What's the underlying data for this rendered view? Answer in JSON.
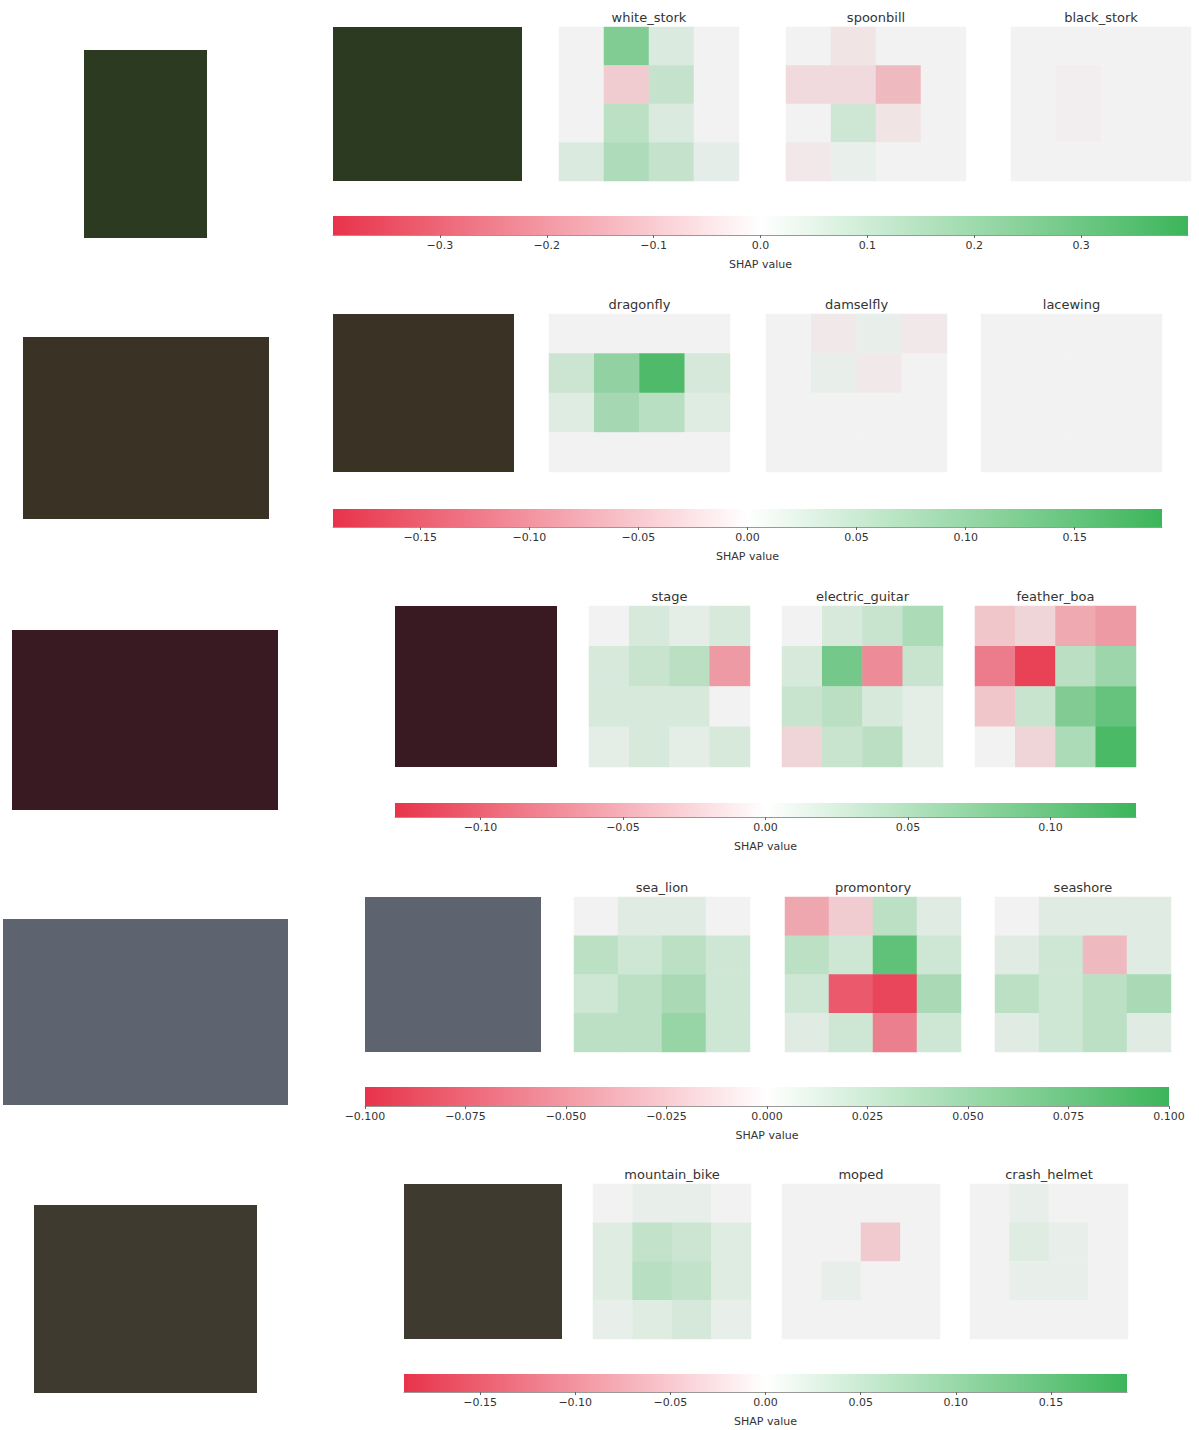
{
  "chart_data": [
    {
      "type": "heatmap",
      "xlabel": "SHAP value",
      "xlim": [
        -0.4,
        0.4
      ],
      "xticks": [
        {
          "value": -0.3,
          "label": "−0.3"
        },
        {
          "value": -0.2,
          "label": "−0.2"
        },
        {
          "value": -0.1,
          "label": "−0.1"
        },
        {
          "value": 0,
          "label": "0.0"
        },
        0.1,
        0.2,
        0.3
      ],
      "series": [
        {
          "name": "white_stork",
          "cells": [
            [
              0,
              0.25,
              0.05,
              0
            ],
            [
              0,
              -0.08,
              0.1,
              0
            ],
            [
              0,
              0.12,
              0.05,
              0
            ],
            [
              0.05,
              0.15,
              0.1,
              0.03
            ]
          ]
        },
        {
          "name": "spoonbill",
          "cells": [
            [
              0,
              -0.03,
              0,
              0
            ],
            [
              -0.05,
              -0.05,
              -0.12,
              0
            ],
            [
              0,
              0.08,
              -0.03,
              0
            ],
            [
              -0.02,
              0.02,
              0,
              0
            ]
          ]
        },
        {
          "name": "black_stork",
          "cells": [
            [
              0,
              0,
              0,
              0
            ],
            [
              0,
              -0.01,
              0,
              0
            ],
            [
              0,
              -0.01,
              0,
              0
            ],
            [
              0,
              0,
              0,
              0
            ]
          ]
        }
      ]
    },
    {
      "type": "heatmap",
      "xlabel": "SHAP value",
      "xlim": [
        -0.19,
        0.19
      ],
      "xticks": [
        {
          "value": -0.15,
          "label": "−0.15"
        },
        {
          "value": -0.1,
          "label": "−0.10"
        },
        {
          "value": -0.05,
          "label": "−0.05"
        },
        {
          "value": 0,
          "label": "0.00"
        },
        0.05,
        {
          "value": 0.1,
          "label": "0.10"
        },
        0.15
      ],
      "series": [
        {
          "name": "dragonfly",
          "cells": [
            [
              0,
              0,
              0,
              0
            ],
            [
              0.04,
              0.1,
              0.17,
              0.03
            ],
            [
              0.02,
              0.08,
              0.06,
              0.02
            ],
            [
              0,
              0,
              0,
              0
            ]
          ]
        },
        {
          "name": "damselfly",
          "cells": [
            [
              0,
              -0.01,
              0.01,
              -0.01
            ],
            [
              0,
              0.01,
              -0.01,
              0
            ],
            [
              0,
              0,
              0,
              0
            ],
            [
              0,
              0,
              0,
              0
            ]
          ]
        },
        {
          "name": "lacewing",
          "cells": [
            [
              0,
              0,
              0,
              0
            ],
            [
              0,
              0,
              0,
              0
            ],
            [
              0,
              0,
              0,
              0
            ],
            [
              0,
              0,
              0,
              0
            ]
          ]
        }
      ]
    },
    {
      "type": "heatmap",
      "xlabel": "SHAP value",
      "xlim": [
        -0.13,
        0.13
      ],
      "xticks": [
        {
          "value": -0.1,
          "label": "−0.10"
        },
        {
          "value": -0.05,
          "label": "−0.05"
        },
        {
          "value": 0,
          "label": "0.00"
        },
        0.05,
        {
          "value": 0.1,
          "label": "0.10"
        }
      ],
      "series": [
        {
          "name": "stage",
          "cells": [
            [
              0,
              0.02,
              0.01,
              0.02
            ],
            [
              0.02,
              0.03,
              0.04,
              -0.06
            ],
            [
              0.02,
              0.02,
              0.02,
              0
            ],
            [
              0.01,
              0.02,
              0.01,
              0.02
            ]
          ]
        },
        {
          "name": "electric_guitar",
          "cells": [
            [
              0,
              0.02,
              0.03,
              0.05
            ],
            [
              0.02,
              0.09,
              -0.07,
              0.03
            ],
            [
              0.03,
              0.04,
              0.02,
              0.01
            ],
            [
              -0.02,
              0.03,
              0.04,
              0.01
            ]
          ]
        },
        {
          "name": "feather_boa",
          "cells": [
            [
              -0.03,
              -0.02,
              -0.05,
              -0.06
            ],
            [
              -0.08,
              -0.12,
              0.04,
              0.06
            ],
            [
              -0.03,
              0.03,
              0.08,
              0.1
            ],
            [
              0,
              -0.02,
              0.05,
              0.12
            ]
          ]
        }
      ]
    },
    {
      "type": "heatmap",
      "xlabel": "SHAP value",
      "xlim": [
        -0.1,
        0.1
      ],
      "xticks": [
        {
          "value": -0.1,
          "label": "−0.100"
        },
        {
          "value": -0.075,
          "label": "−0.075"
        },
        {
          "value": -0.05,
          "label": "−0.050"
        },
        {
          "value": -0.025,
          "label": "−0.025"
        },
        {
          "value": 0,
          "label": "0.000"
        },
        0.025,
        {
          "value": 0.05,
          "label": "0.050"
        },
        0.075,
        {
          "value": 0.1,
          "label": "0.100"
        }
      ],
      "series": [
        {
          "name": "sea_lion",
          "cells": [
            [
              0,
              0.01,
              0.01,
              0
            ],
            [
              0.03,
              0.02,
              0.03,
              0.02
            ],
            [
              0.02,
              0.03,
              0.04,
              0.02
            ],
            [
              0.03,
              0.03,
              0.05,
              0.02
            ]
          ]
        },
        {
          "name": "promontory",
          "cells": [
            [
              -0.04,
              -0.02,
              0.03,
              0.01
            ],
            [
              0.03,
              0.02,
              0.08,
              0.02
            ],
            [
              0.02,
              -0.08,
              -0.09,
              0.04
            ],
            [
              0.01,
              0.02,
              -0.06,
              0.02
            ]
          ]
        },
        {
          "name": "seashore",
          "cells": [
            [
              0,
              0.01,
              0.01,
              0.01
            ],
            [
              0.01,
              0.02,
              -0.03,
              0.01
            ],
            [
              0.03,
              0.02,
              0.03,
              0.04
            ],
            [
              0.01,
              0.02,
              0.03,
              0.01
            ]
          ]
        }
      ]
    },
    {
      "type": "heatmap",
      "xlabel": "SHAP value",
      "xlim": [
        -0.19,
        0.19
      ],
      "xticks": [
        {
          "value": -0.15,
          "label": "−0.15"
        },
        {
          "value": -0.1,
          "label": "−0.10"
        },
        {
          "value": -0.05,
          "label": "−0.05"
        },
        {
          "value": 0,
          "label": "0.00"
        },
        0.05,
        {
          "value": 0.1,
          "label": "0.10"
        },
        0.15
      ],
      "series": [
        {
          "name": "mountain_bike",
          "cells": [
            [
              0,
              0.01,
              0.01,
              0
            ],
            [
              0.02,
              0.05,
              0.04,
              0.02
            ],
            [
              0.02,
              0.06,
              0.05,
              0.02
            ],
            [
              0.01,
              0.02,
              0.03,
              0.01
            ]
          ]
        },
        {
          "name": "moped",
          "cells": [
            [
              0,
              0,
              0,
              0
            ],
            [
              0,
              0,
              -0.04,
              0
            ],
            [
              0,
              0.01,
              0,
              0
            ],
            [
              0,
              0,
              0,
              0
            ]
          ]
        },
        {
          "name": "crash_helmet",
          "cells": [
            [
              0,
              0.01,
              0,
              0
            ],
            [
              0,
              0.02,
              0.01,
              0
            ],
            [
              0,
              0.01,
              0.01,
              0
            ],
            [
              0,
              0,
              0,
              0
            ]
          ]
        }
      ]
    }
  ]
}
